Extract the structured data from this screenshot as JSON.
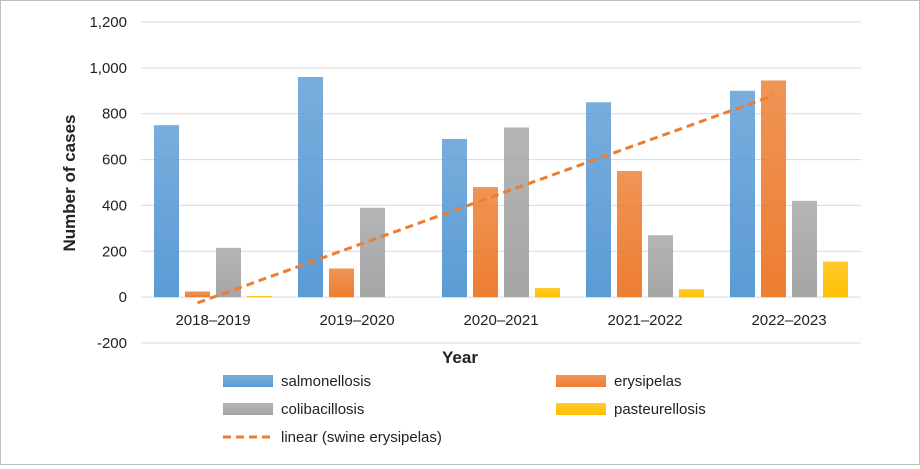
{
  "chart_data": {
    "type": "bar",
    "title": "",
    "xlabel": "Year",
    "ylabel": "Number of cases",
    "ylim": [
      -200,
      1200
    ],
    "yticks": [
      -200,
      0,
      200,
      400,
      600,
      800,
      1000,
      1200
    ],
    "ytick_labels": [
      "-200",
      "0",
      "200",
      "400",
      "600",
      "800",
      "1,000",
      "1,200"
    ],
    "categories": [
      "2018–2019",
      "2019–2020",
      "2020–2021",
      "2021–2022",
      "2022–2023"
    ],
    "series": [
      {
        "name": "salmonellosis",
        "color": "#5B9BD5",
        "values": [
          750,
          960,
          690,
          850,
          900
        ]
      },
      {
        "name": "erysipelas",
        "color": "#ED7D31",
        "values": [
          25,
          125,
          480,
          550,
          945
        ]
      },
      {
        "name": "colibacillosis",
        "color": "#A5A5A5",
        "values": [
          215,
          390,
          740,
          270,
          420
        ]
      },
      {
        "name": "pasteurellosis",
        "color": "#FFC000",
        "values": [
          5,
          0,
          40,
          35,
          155
        ]
      }
    ],
    "trendline": {
      "name": "linear (swine erysipelas)",
      "color": "#ED7D31",
      "style": "dashed",
      "start_value": -25,
      "end_value": 880
    },
    "grid": true,
    "legend_position": "bottom"
  }
}
